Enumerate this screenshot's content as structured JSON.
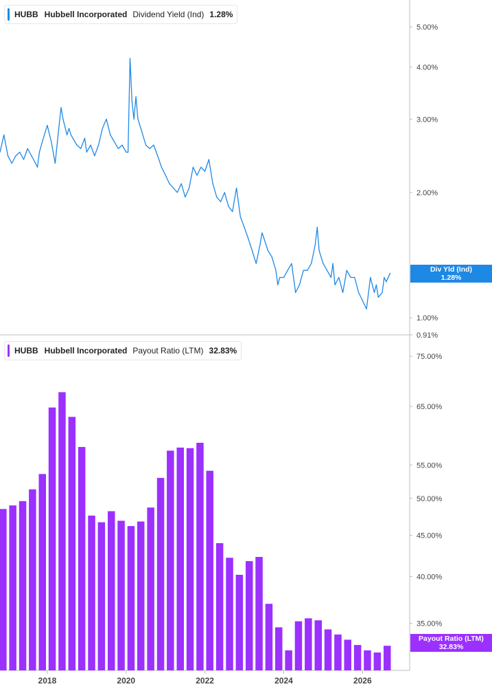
{
  "colors": {
    "yield": "#1e88e5",
    "payout": "#9b30ff",
    "axis": "#bdbdbd",
    "text": "#444444"
  },
  "legends": {
    "top": {
      "ticker": "HUBB",
      "name": "Hubbell Incorporated",
      "metric": "Dividend Yield (Ind)",
      "value": "1.28%"
    },
    "bottom": {
      "ticker": "HUBB",
      "name": "Hubbell Incorporated",
      "metric": "Payout Ratio (LTM)",
      "value": "32.83%"
    }
  },
  "tags": {
    "yield": {
      "line1": "Div Yld (Ind)",
      "line2": "1.28%"
    },
    "payout": {
      "line1": "Payout Ratio (LTM)",
      "line2": "32.83%"
    }
  },
  "chart_data": [
    {
      "type": "line",
      "title": "Dividend Yield (Ind)",
      "scale": "log",
      "ylim": [
        0.91,
        5.8
      ],
      "y_ticks": [
        "5.00%",
        "4.00%",
        "3.00%",
        "2.00%",
        "1.00%",
        "0.91%"
      ],
      "y_tick_values": [
        5.0,
        4.0,
        3.0,
        2.0,
        1.0,
        0.91
      ],
      "xlim": [
        2016.8,
        2026.9
      ],
      "series": [
        {
          "name": "Div Yld (Ind)",
          "x": [
            2016.8,
            2016.9,
            2017.0,
            2017.1,
            2017.2,
            2017.3,
            2017.4,
            2017.5,
            2017.6,
            2017.7,
            2017.75,
            2017.8,
            2017.9,
            2018.0,
            2018.1,
            2018.2,
            2018.3,
            2018.35,
            2018.4,
            2018.5,
            2018.55,
            2018.6,
            2018.75,
            2018.85,
            2018.95,
            2019.0,
            2019.1,
            2019.2,
            2019.3,
            2019.4,
            2019.5,
            2019.6,
            2019.7,
            2019.8,
            2019.9,
            2020.0,
            2020.05,
            2020.1,
            2020.15,
            2020.2,
            2020.25,
            2020.3,
            2020.4,
            2020.5,
            2020.6,
            2020.7,
            2020.8,
            2020.9,
            2021.0,
            2021.1,
            2021.2,
            2021.3,
            2021.4,
            2021.5,
            2021.6,
            2021.7,
            2021.8,
            2021.9,
            2022.0,
            2022.1,
            2022.2,
            2022.3,
            2022.4,
            2022.5,
            2022.6,
            2022.7,
            2022.8,
            2022.9,
            2023.0,
            2023.1,
            2023.2,
            2023.3,
            2023.4,
            2023.45,
            2023.5,
            2023.6,
            2023.7,
            2023.8,
            2023.85,
            2023.9,
            2024.0,
            2024.1,
            2024.2,
            2024.3,
            2024.4,
            2024.5,
            2024.6,
            2024.7,
            2024.8,
            2024.85,
            2024.9,
            2025.0,
            2025.1,
            2025.2,
            2025.25,
            2025.3,
            2025.4,
            2025.5,
            2025.6,
            2025.7,
            2025.8,
            2025.9,
            2026.0,
            2026.1,
            2026.2,
            2026.3,
            2026.35,
            2026.4,
            2026.5,
            2026.55,
            2026.6,
            2026.7
          ],
          "values": [
            2.5,
            2.75,
            2.45,
            2.35,
            2.45,
            2.5,
            2.4,
            2.55,
            2.45,
            2.35,
            2.3,
            2.5,
            2.7,
            2.9,
            2.65,
            2.35,
            2.9,
            3.2,
            3.0,
            2.75,
            2.85,
            2.75,
            2.6,
            2.55,
            2.7,
            2.5,
            2.6,
            2.45,
            2.6,
            2.85,
            3.0,
            2.75,
            2.65,
            2.55,
            2.6,
            2.5,
            2.5,
            4.2,
            3.3,
            3.0,
            3.4,
            3.0,
            2.8,
            2.6,
            2.55,
            2.6,
            2.45,
            2.3,
            2.2,
            2.1,
            2.05,
            2.0,
            2.1,
            1.95,
            2.05,
            2.3,
            2.2,
            2.3,
            2.25,
            2.4,
            2.1,
            1.95,
            1.9,
            2.0,
            1.85,
            1.8,
            2.05,
            1.75,
            1.65,
            1.55,
            1.45,
            1.35,
            1.5,
            1.6,
            1.55,
            1.45,
            1.4,
            1.3,
            1.2,
            1.25,
            1.25,
            1.3,
            1.35,
            1.15,
            1.2,
            1.3,
            1.3,
            1.35,
            1.5,
            1.65,
            1.45,
            1.35,
            1.3,
            1.25,
            1.35,
            1.2,
            1.25,
            1.15,
            1.3,
            1.25,
            1.25,
            1.15,
            1.1,
            1.05,
            1.25,
            1.15,
            1.2,
            1.12,
            1.15,
            1.25,
            1.22,
            1.28
          ]
        }
      ]
    },
    {
      "type": "bar",
      "title": "Payout Ratio (LTM)",
      "scale": "log",
      "ylim": [
        30.6,
        78.5
      ],
      "y_ticks": [
        "75.00%",
        "65.00%",
        "55.00%",
        "50.00%",
        "45.00%",
        "40.00%",
        "35.00%"
      ],
      "y_tick_values": [
        75,
        65,
        55,
        50,
        45,
        40,
        35
      ],
      "x_ticks": [
        "2018",
        "2020",
        "2022",
        "2024",
        "2026"
      ],
      "x_tick_values": [
        2018,
        2020,
        2022,
        2024,
        2026
      ],
      "xlim": [
        2016.8,
        2026.9
      ],
      "series": [
        {
          "name": "Payout Ratio (LTM)",
          "x": [
            2016.875,
            2017.125,
            2017.375,
            2017.625,
            2017.875,
            2018.125,
            2018.375,
            2018.625,
            2018.875,
            2019.125,
            2019.375,
            2019.625,
            2019.875,
            2020.125,
            2020.375,
            2020.625,
            2020.875,
            2021.125,
            2021.375,
            2021.625,
            2021.875,
            2022.125,
            2022.375,
            2022.625,
            2022.875,
            2023.125,
            2023.375,
            2023.625,
            2023.875,
            2024.125,
            2024.375,
            2024.625,
            2024.875,
            2025.125,
            2025.375,
            2025.625,
            2025.875,
            2026.125,
            2026.375,
            2026.625
          ],
          "values": [
            48.5,
            49.0,
            49.6,
            51.3,
            53.6,
            64.8,
            67.7,
            63.1,
            57.9,
            47.6,
            46.7,
            48.2,
            46.9,
            46.2,
            46.8,
            48.7,
            53.0,
            57.3,
            57.8,
            57.7,
            58.6,
            54.1,
            44.0,
            42.2,
            40.2,
            41.8,
            42.3,
            37.0,
            34.6,
            32.4,
            35.2,
            35.5,
            35.3,
            34.4,
            33.9,
            33.4,
            32.9,
            32.4,
            32.2,
            32.83
          ]
        }
      ]
    }
  ]
}
